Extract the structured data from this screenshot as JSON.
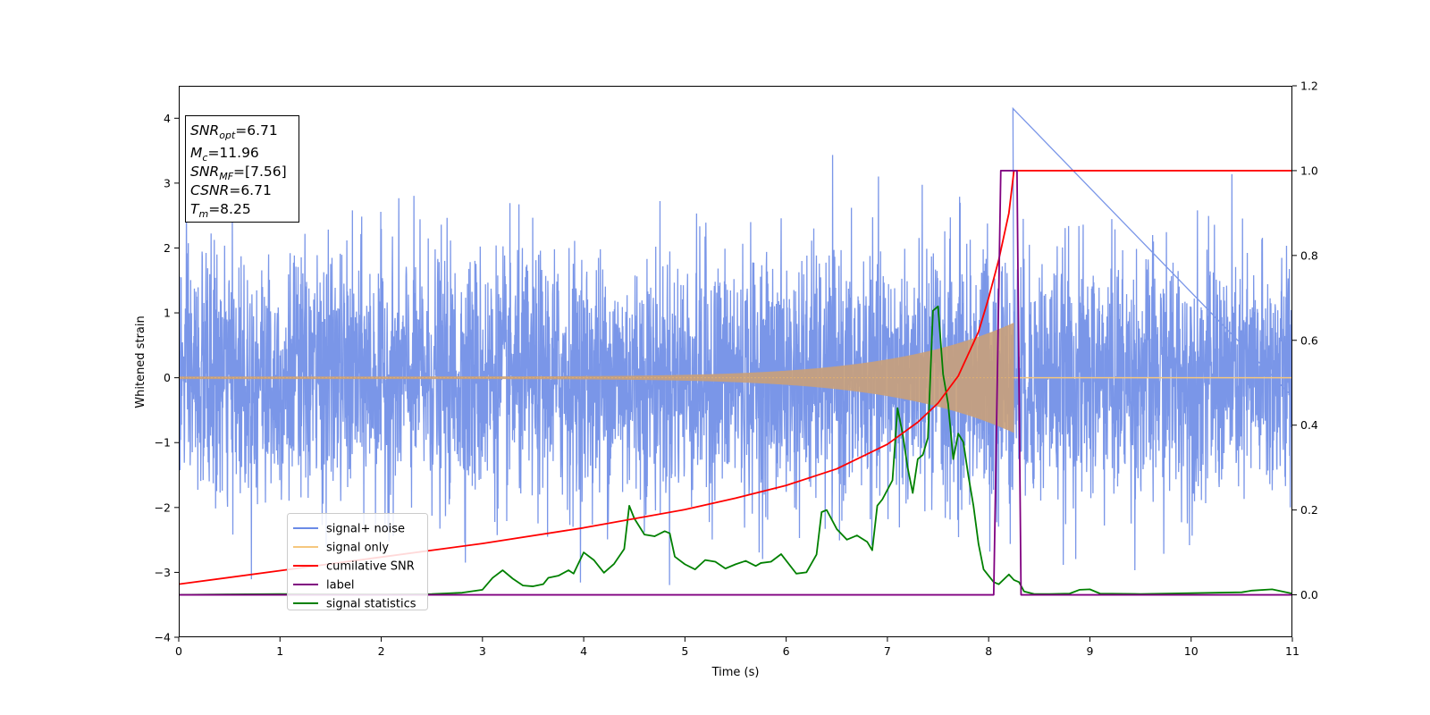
{
  "chart_data": {
    "type": "line",
    "xlabel": "Time (s)",
    "ylabel": "Whitened strain",
    "xlim": [
      0,
      11
    ],
    "ylim": [
      -4,
      4.5
    ],
    "y2lim": [
      -0.1,
      1.2
    ],
    "x_ticks": [
      "0",
      "1",
      "2",
      "3",
      "4",
      "5",
      "6",
      "7",
      "8",
      "9",
      "10",
      "11"
    ],
    "y_ticks": [
      "−4",
      "−3",
      "−2",
      "−1",
      "0",
      "1",
      "2",
      "3",
      "4"
    ],
    "y2_ticks": [
      "0.0",
      "0.2",
      "0.4",
      "0.6",
      "0.8",
      "1.0",
      "1.2"
    ],
    "info_box": [
      {
        "base": "SNR",
        "sub": "opt",
        "value": "=6.71"
      },
      {
        "base": "M",
        "sub": "c",
        "value": "=11.96"
      },
      {
        "base": "SNR",
        "sub": "MF",
        "value": "=[7.56]"
      },
      {
        "base": "CSNR",
        "sub": "",
        "value": "=6.71"
      },
      {
        "base": "T",
        "sub": "m",
        "value": "=8.25"
      }
    ],
    "legend": {
      "location": "lower-left",
      "entries": [
        {
          "label": "signal+ noise",
          "color": "#6b8be6"
        },
        {
          "label": "signal only",
          "color": "#f5c77e"
        },
        {
          "label": "cumilative SNR",
          "color": "#ff0000"
        },
        {
          "label": "label",
          "color": "#800080"
        },
        {
          "label": "signal statistics",
          "color": "#008000"
        }
      ]
    },
    "series": [
      {
        "name": "signal+ noise",
        "axis": "left",
        "color": "#6b8be6",
        "description_values": {
          "std": 0.95,
          "max": 4.15,
          "min": -3.62,
          "notable_peak_x": 8.24,
          "notable_peak_y": 4.15
        }
      },
      {
        "name": "signal only",
        "axis": "left",
        "color": "#f5c77e",
        "chirp": {
          "start": 0.0,
          "merger": 8.25,
          "amp_start": 0.02,
          "amp_peak": 0.85
        }
      },
      {
        "name": "cumilative SNR",
        "axis": "right",
        "x": [
          0,
          1,
          2,
          3,
          4,
          5,
          5.5,
          6,
          6.5,
          7,
          7.3,
          7.5,
          7.7,
          7.9,
          8.0,
          8.1,
          8.2,
          8.25,
          11
        ],
        "values": [
          0.025,
          0.057,
          0.089,
          0.121,
          0.158,
          0.201,
          0.228,
          0.258,
          0.297,
          0.355,
          0.407,
          0.452,
          0.516,
          0.62,
          0.7,
          0.79,
          0.9,
          1.0,
          1.0
        ]
      },
      {
        "name": "label",
        "axis": "right",
        "x": [
          0,
          8.05,
          8.12,
          8.28,
          8.32,
          11
        ],
        "values": [
          0,
          0,
          1,
          1,
          0,
          0
        ]
      },
      {
        "name": "signal statistics",
        "axis": "right",
        "x": [
          0,
          0.5,
          1,
          2,
          2.5,
          2.8,
          3.0,
          3.1,
          3.2,
          3.3,
          3.4,
          3.5,
          3.6,
          3.65,
          3.75,
          3.85,
          3.9,
          4.0,
          4.1,
          4.2,
          4.3,
          4.4,
          4.45,
          4.5,
          4.6,
          4.7,
          4.8,
          4.85,
          4.9,
          5.0,
          5.1,
          5.2,
          5.3,
          5.4,
          5.5,
          5.6,
          5.7,
          5.75,
          5.85,
          5.95,
          6.1,
          6.2,
          6.3,
          6.35,
          6.4,
          6.5,
          6.6,
          6.7,
          6.8,
          6.85,
          6.9,
          6.95,
          7.05,
          7.1,
          7.15,
          7.2,
          7.25,
          7.3,
          7.35,
          7.4,
          7.45,
          7.5,
          7.55,
          7.6,
          7.65,
          7.7,
          7.75,
          7.8,
          7.85,
          7.9,
          7.95,
          8.0,
          8.05,
          8.1,
          8.2,
          8.25,
          8.3,
          8.35,
          8.45,
          8.6,
          8.8,
          8.9,
          9.0,
          9.1,
          9.5,
          10.0,
          10.5,
          10.6,
          10.8,
          11.0
        ],
        "values": [
          0,
          0.001,
          0.002,
          0.001,
          0.002,
          0.005,
          0.012,
          0.04,
          0.058,
          0.038,
          0.022,
          0.02,
          0.025,
          0.04,
          0.045,
          0.058,
          0.05,
          0.1,
          0.082,
          0.052,
          0.073,
          0.108,
          0.21,
          0.18,
          0.142,
          0.138,
          0.15,
          0.145,
          0.09,
          0.072,
          0.06,
          0.082,
          0.078,
          0.062,
          0.072,
          0.08,
          0.068,
          0.075,
          0.078,
          0.096,
          0.05,
          0.053,
          0.095,
          0.195,
          0.2,
          0.155,
          0.13,
          0.14,
          0.125,
          0.105,
          0.21,
          0.225,
          0.27,
          0.44,
          0.38,
          0.3,
          0.24,
          0.32,
          0.33,
          0.37,
          0.67,
          0.68,
          0.52,
          0.45,
          0.32,
          0.38,
          0.36,
          0.28,
          0.21,
          0.12,
          0.06,
          0.045,
          0.03,
          0.025,
          0.048,
          0.035,
          0.03,
          0.008,
          0.002,
          0.002,
          0.003,
          0.012,
          0.013,
          0.003,
          0.002,
          0.004,
          0.006,
          0.01,
          0.013,
          0.003
        ]
      }
    ]
  }
}
